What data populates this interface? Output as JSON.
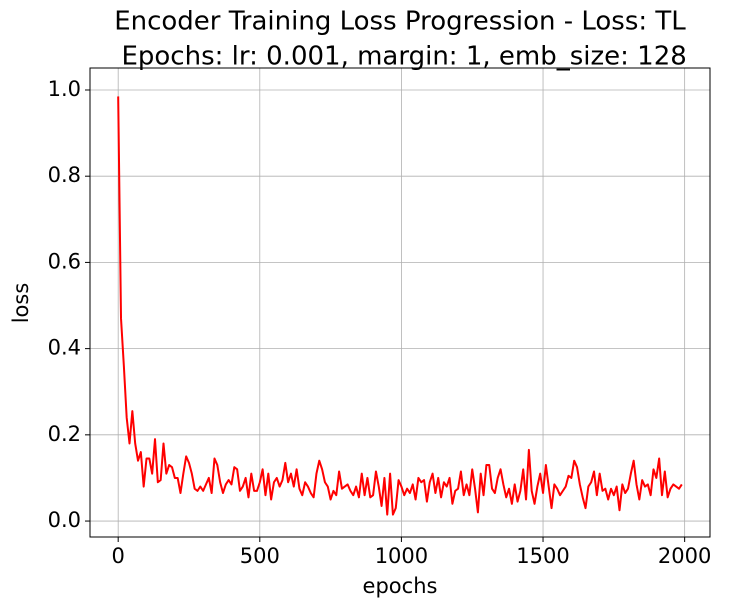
{
  "chart_data": {
    "type": "line",
    "title": [
      "Encoder Training Loss Progression - Loss: TL",
      " Epochs: lr: 0.001, margin: 1, emb_size: 128"
    ],
    "xlabel": "epochs",
    "ylabel": "loss",
    "color": "#ff0000",
    "grid": true,
    "xlim": [
      -99.5,
      2089.5
    ],
    "ylim": [
      -0.037,
      1.051
    ],
    "xticks": [
      0,
      500,
      1000,
      1500,
      2000
    ],
    "yticks": [
      {
        "value": 0,
        "label": "0.0"
      },
      0.2,
      0.4,
      0.6,
      0.8,
      {
        "value": 1,
        "label": "1.0"
      }
    ],
    "x": [
      0,
      10,
      20,
      30,
      40,
      50,
      60,
      70,
      80,
      90,
      100,
      110,
      120,
      130,
      140,
      150,
      160,
      170,
      180,
      190,
      200,
      210,
      220,
      230,
      240,
      250,
      260,
      270,
      280,
      290,
      300,
      310,
      320,
      330,
      340,
      350,
      360,
      370,
      380,
      390,
      400,
      410,
      420,
      430,
      440,
      450,
      460,
      470,
      480,
      490,
      500,
      510,
      520,
      530,
      540,
      550,
      560,
      570,
      580,
      590,
      600,
      610,
      620,
      630,
      640,
      650,
      660,
      670,
      680,
      690,
      700,
      710,
      720,
      730,
      740,
      750,
      760,
      770,
      780,
      790,
      800,
      810,
      820,
      830,
      840,
      850,
      860,
      870,
      880,
      890,
      900,
      910,
      920,
      930,
      940,
      950,
      960,
      970,
      980,
      990,
      1000,
      1010,
      1020,
      1030,
      1040,
      1050,
      1060,
      1070,
      1080,
      1090,
      1100,
      1110,
      1120,
      1130,
      1140,
      1150,
      1160,
      1170,
      1180,
      1190,
      1200,
      1210,
      1220,
      1230,
      1240,
      1250,
      1260,
      1270,
      1280,
      1290,
      1300,
      1310,
      1320,
      1330,
      1340,
      1350,
      1360,
      1370,
      1380,
      1390,
      1400,
      1410,
      1420,
      1430,
      1440,
      1450,
      1460,
      1470,
      1480,
      1490,
      1500,
      1510,
      1520,
      1530,
      1540,
      1550,
      1560,
      1570,
      1580,
      1590,
      1600,
      1610,
      1620,
      1630,
      1640,
      1650,
      1660,
      1670,
      1680,
      1690,
      1700,
      1710,
      1720,
      1730,
      1740,
      1750,
      1760,
      1770,
      1780,
      1790,
      1800,
      1810,
      1820,
      1830,
      1840,
      1850,
      1860,
      1870,
      1880,
      1890,
      1900,
      1910,
      1920,
      1930,
      1940,
      1950,
      1960,
      1970,
      1980,
      1990
    ],
    "values": [
      0.985,
      0.47,
      0.36,
      0.24,
      0.18,
      0.255,
      0.18,
      0.14,
      0.16,
      0.08,
      0.145,
      0.145,
      0.11,
      0.19,
      0.09,
      0.095,
      0.18,
      0.11,
      0.13,
      0.125,
      0.1,
      0.1,
      0.065,
      0.11,
      0.15,
      0.135,
      0.11,
      0.075,
      0.07,
      0.08,
      0.07,
      0.085,
      0.1,
      0.065,
      0.145,
      0.13,
      0.09,
      0.065,
      0.085,
      0.095,
      0.085,
      0.125,
      0.12,
      0.07,
      0.08,
      0.1,
      0.055,
      0.11,
      0.07,
      0.07,
      0.09,
      0.12,
      0.06,
      0.11,
      0.05,
      0.09,
      0.1,
      0.08,
      0.095,
      0.135,
      0.09,
      0.11,
      0.08,
      0.12,
      0.075,
      0.06,
      0.09,
      0.08,
      0.065,
      0.055,
      0.11,
      0.14,
      0.12,
      0.09,
      0.08,
      0.05,
      0.07,
      0.06,
      0.115,
      0.075,
      0.08,
      0.085,
      0.07,
      0.06,
      0.08,
      0.055,
      0.11,
      0.06,
      0.1,
      0.055,
      0.06,
      0.115,
      0.08,
      0.035,
      0.1,
      0.015,
      0.11,
      0.015,
      0.03,
      0.095,
      0.08,
      0.06,
      0.075,
      0.065,
      0.085,
      0.05,
      0.1,
      0.09,
      0.095,
      0.045,
      0.09,
      0.11,
      0.065,
      0.1,
      0.055,
      0.09,
      0.08,
      0.1,
      0.04,
      0.07,
      0.075,
      0.115,
      0.06,
      0.085,
      0.06,
      0.12,
      0.075,
      0.02,
      0.11,
      0.06,
      0.13,
      0.13,
      0.075,
      0.065,
      0.1,
      0.12,
      0.085,
      0.055,
      0.075,
      0.04,
      0.085,
      0.045,
      0.07,
      0.12,
      0.05,
      0.165,
      0.07,
      0.04,
      0.08,
      0.11,
      0.065,
      0.13,
      0.08,
      0.03,
      0.085,
      0.075,
      0.06,
      0.07,
      0.08,
      0.105,
      0.1,
      0.14,
      0.125,
      0.085,
      0.055,
      0.03,
      0.08,
      0.09,
      0.115,
      0.06,
      0.11,
      0.07,
      0.075,
      0.05,
      0.075,
      0.06,
      0.08,
      0.025,
      0.085,
      0.065,
      0.075,
      0.11,
      0.14,
      0.085,
      0.05,
      0.095,
      0.08,
      0.085,
      0.06,
      0.12,
      0.1,
      0.145,
      0.06,
      0.115,
      0.055,
      0.075,
      0.085,
      0.08,
      0.075,
      0.085
    ]
  }
}
